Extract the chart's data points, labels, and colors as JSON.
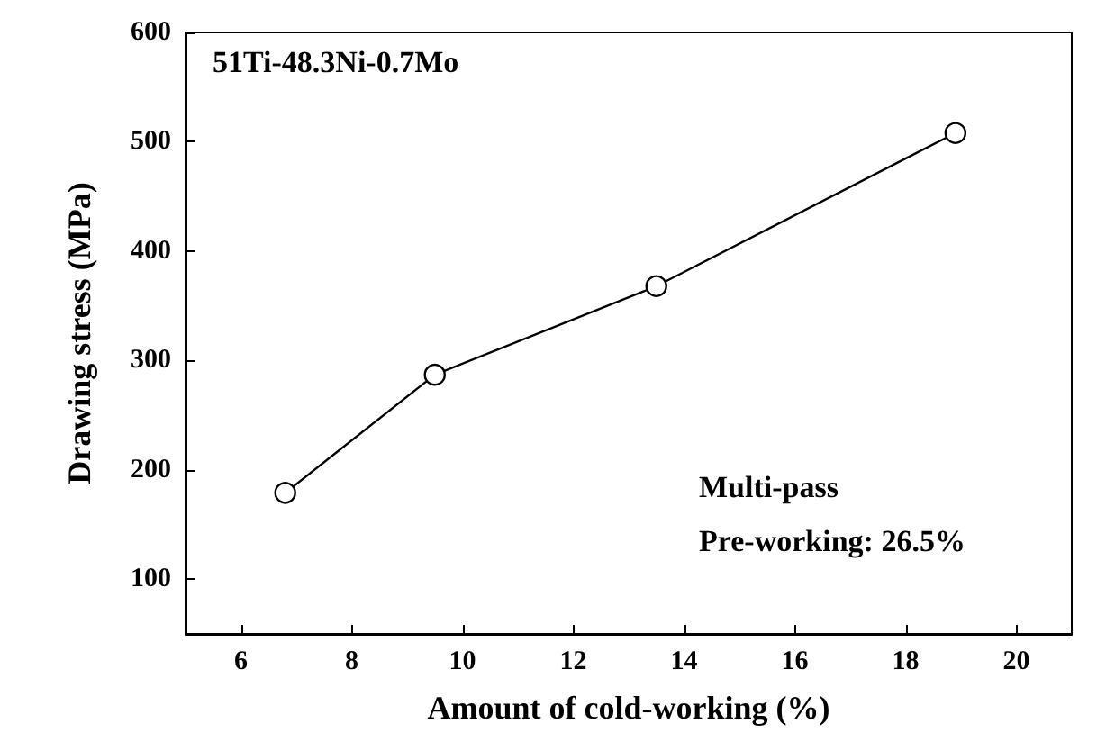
{
  "chart_data": {
    "type": "line",
    "xlabel": "Amount of cold-working (%)",
    "ylabel": "Drawing stress (MPa)",
    "annotations": [
      "51Ti-48.3Ni-0.7Mo",
      "Multi-pass",
      "Pre-working: 26.5%"
    ],
    "x": [
      6.8,
      9.5,
      13.5,
      18.9
    ],
    "series": [
      {
        "color": "#000000",
        "values": [
          179,
          287,
          368,
          508
        ]
      }
    ],
    "xlim": [
      5,
      21
    ],
    "xticks": [
      6,
      8,
      10,
      12,
      14,
      16,
      18,
      20
    ],
    "ylim": [
      50,
      600
    ],
    "yticks": [
      100,
      200,
      300,
      400,
      500,
      600
    ],
    "grid": false,
    "marker": "circle",
    "line_style": "solid"
  }
}
